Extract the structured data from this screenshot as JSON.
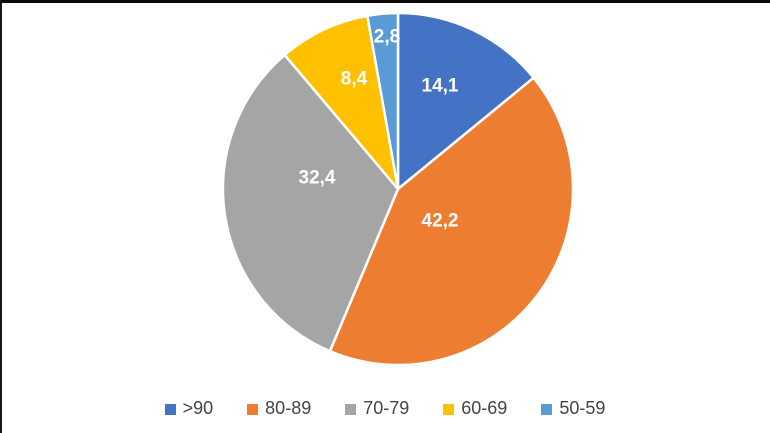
{
  "chart_data": {
    "type": "pie",
    "categories": [
      ">90",
      "80-89",
      "70-79",
      "60-69",
      "50-59"
    ],
    "values": [
      14.1,
      42.2,
      32.4,
      8.4,
      2.8
    ],
    "labels_display": [
      "14,1",
      "42,2",
      "32,4",
      "8,4",
      "2,8"
    ],
    "colors": [
      "#4472C4",
      "#ED7D31",
      "#A5A5A5",
      "#FFC000",
      "#5B9BD5"
    ],
    "title": "",
    "start_angle_deg": 0,
    "direction": "clockwise",
    "slice_border_color": "#FFFFFF",
    "data_label_color": "#FFFFFF",
    "legend_position": "bottom",
    "legend_text_color": "#444444",
    "background_color": "#FFFFFF",
    "frame_border_color": "#0A0A0A"
  }
}
